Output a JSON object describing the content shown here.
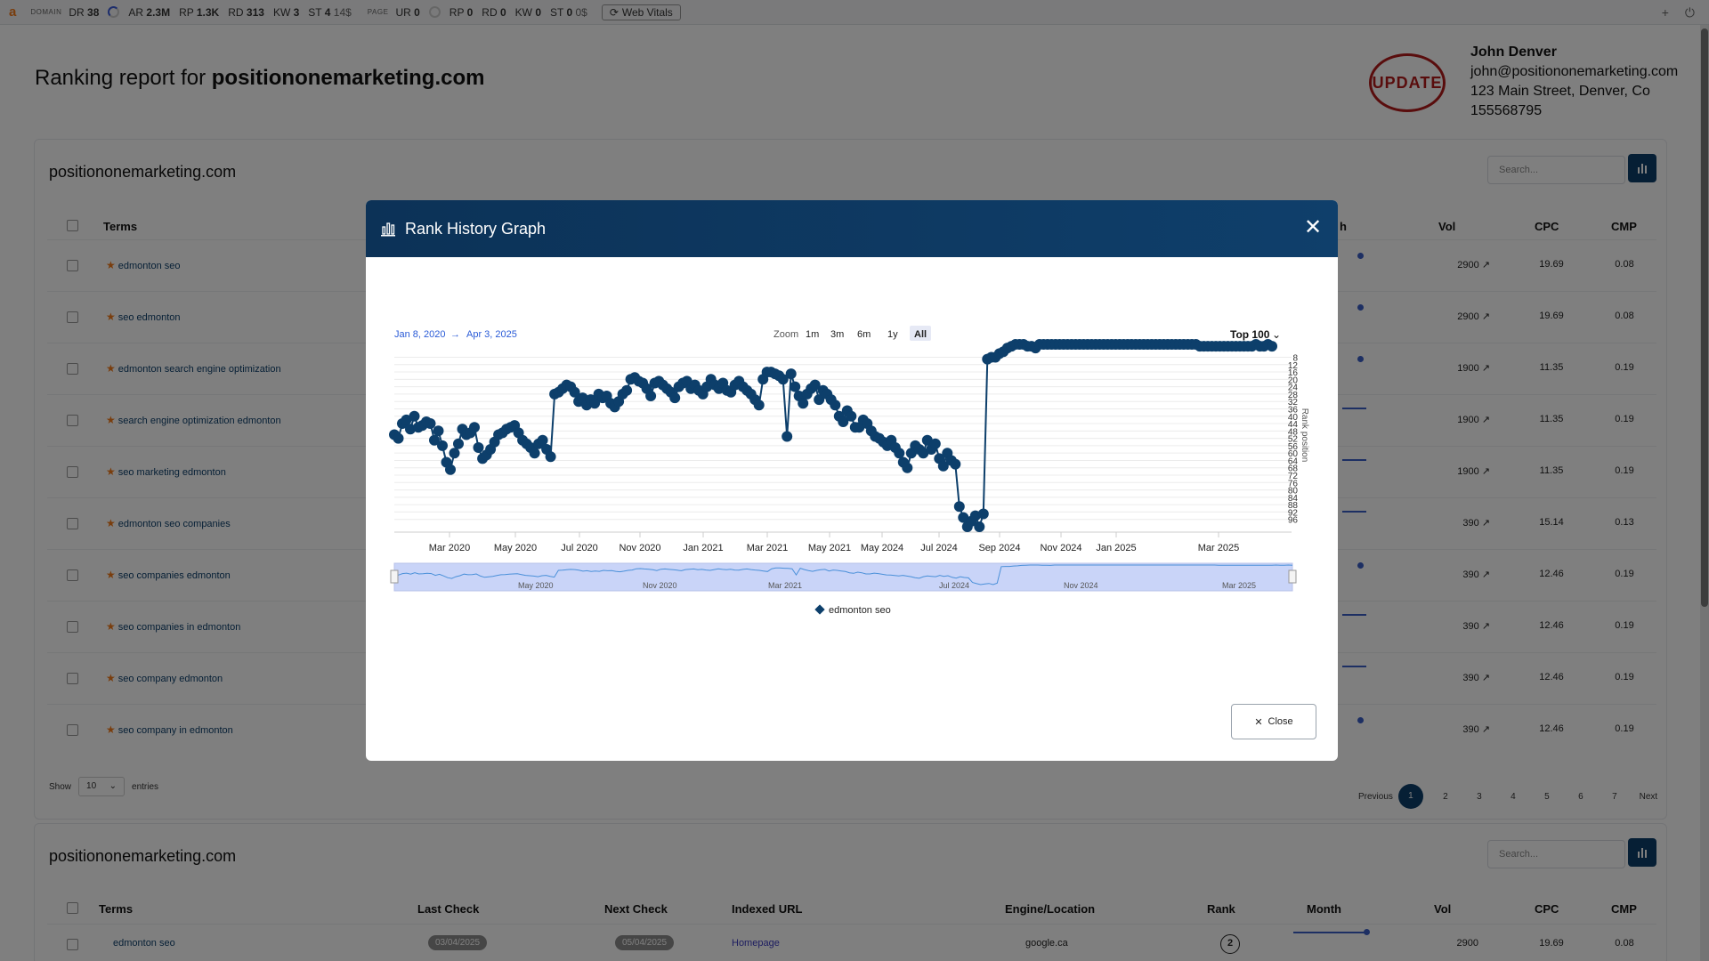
{
  "toolbar": {
    "logo": "a",
    "domain_label": "DOMAIN",
    "page_label": "PAGE",
    "domain_metrics": [
      {
        "k": "DR",
        "v": "38"
      },
      {
        "k": "AR",
        "v": "2.3M"
      },
      {
        "k": "RP",
        "v": "1.3K"
      },
      {
        "k": "RD",
        "v": "313"
      },
      {
        "k": "KW",
        "v": "3"
      },
      {
        "k": "ST",
        "v": "4",
        "extra": "14$"
      }
    ],
    "page_metrics": [
      {
        "k": "UR",
        "v": "0"
      },
      {
        "k": "RP",
        "v": "0"
      },
      {
        "k": "RD",
        "v": "0"
      },
      {
        "k": "KW",
        "v": "0"
      },
      {
        "k": "ST",
        "v": "0",
        "extra": "0$"
      }
    ],
    "web_vitals": "Web Vitals"
  },
  "report": {
    "title_prefix": "Ranking report for ",
    "title_domain": "positiononemarketing.com",
    "stamp_text": "UPDATE",
    "contact": {
      "name": "John Denver",
      "email": "john@positiononemarketing.com",
      "address": "123 Main Street, Denver, Co",
      "phone": "155568795"
    }
  },
  "card1": {
    "title": "positiononemarketing.com",
    "search_placeholder": "Search...",
    "headers": {
      "terms": "Terms",
      "month": "h",
      "vol": "Vol",
      "cpc": "CPC",
      "cmp": "CMP"
    },
    "rows": [
      {
        "term": "edmonton seo",
        "vol": "2900",
        "cpc": "19.69",
        "cmp": "0.08",
        "trend": "dot"
      },
      {
        "term": "seo edmonton",
        "vol": "2900",
        "cpc": "19.69",
        "cmp": "0.08",
        "trend": "dot"
      },
      {
        "term": "edmonton search engine optimization",
        "vol": "1900",
        "cpc": "11.35",
        "cmp": "0.19",
        "trend": "dot"
      },
      {
        "term": "search engine optimization edmonton",
        "vol": "1900",
        "cpc": "11.35",
        "cmp": "0.19",
        "trend": "line"
      },
      {
        "term": "seo marketing edmonton",
        "vol": "1900",
        "cpc": "11.35",
        "cmp": "0.19",
        "trend": "line"
      },
      {
        "term": "edmonton seo companies",
        "vol": "390",
        "cpc": "15.14",
        "cmp": "0.13",
        "trend": "line"
      },
      {
        "term": "seo companies edmonton",
        "vol": "390",
        "cpc": "12.46",
        "cmp": "0.19",
        "trend": "dot"
      },
      {
        "term": "seo companies in edmonton",
        "vol": "390",
        "cpc": "12.46",
        "cmp": "0.19",
        "trend": "line"
      },
      {
        "term": "seo company edmonton",
        "vol": "390",
        "cpc": "12.46",
        "cmp": "0.19",
        "trend": "line"
      },
      {
        "term": "seo company in edmonton",
        "vol": "390",
        "cpc": "12.46",
        "cmp": "0.19",
        "trend": "dot"
      }
    ],
    "show": "Show",
    "entries_value": "10",
    "entries": "entries",
    "pager": {
      "previous": "Previous",
      "pages": [
        "1",
        "2",
        "3",
        "4",
        "5",
        "6",
        "7"
      ],
      "next": "Next",
      "active": "1"
    }
  },
  "card2": {
    "title": "positiononemarketing.com",
    "search_placeholder": "Search...",
    "headers": {
      "terms": "Terms",
      "last_check": "Last Check",
      "next_check": "Next Check",
      "indexed_url": "Indexed URL",
      "engine": "Engine/Location",
      "rank": "Rank",
      "month": "Month",
      "vol": "Vol",
      "cpc": "CPC",
      "cmp": "CMP"
    },
    "row": {
      "term": "edmonton seo",
      "last_check": "03/04/2025",
      "next_check": "05/04/2025",
      "indexed_url": "Homepage",
      "engine": "google.ca",
      "rank": "2",
      "vol": "2900",
      "cpc": "19.69",
      "cmp": "0.08"
    }
  },
  "modal": {
    "title": "Rank History Graph",
    "close_label": "Close",
    "date_from": "Jan 8, 2020",
    "date_to": "Apr 3, 2025",
    "zoom_label": "Zoom",
    "zoom_options": [
      "1m",
      "3m",
      "6m",
      "1y",
      "All"
    ],
    "zoom_active": "All",
    "top_select": "Top 100",
    "legend": "edmonton seo",
    "colors": {
      "series": "#0d3f6b",
      "navigator_fill": "#c9d4f8",
      "navigator_line": "#4a90d9"
    }
  },
  "chart_data": {
    "type": "line",
    "ylabel": "Rank position",
    "y_reversed": true,
    "ylim": [
      1,
      100
    ],
    "y_ticks": [
      8,
      12,
      16,
      20,
      24,
      28,
      32,
      36,
      40,
      44,
      48,
      52,
      56,
      60,
      64,
      68,
      72,
      76,
      80,
      84,
      88,
      92,
      96
    ],
    "x_ticks": [
      "Mar 2020",
      "May 2020",
      "Jul 2020",
      "Nov 2020",
      "Jan 2021",
      "Mar 2021",
      "May 2021",
      "May 2024",
      "Jul 2024",
      "Sep 2024",
      "Nov 2024",
      "Jan 2025",
      "Mar 2025"
    ],
    "navigator_ticks": [
      "May 2020",
      "Nov 2020",
      "Mar 2021",
      "Jul 2024",
      "Nov 2024",
      "Mar 2025"
    ],
    "series": [
      {
        "name": "edmonton seo",
        "values": [
          50,
          52,
          44,
          42,
          47,
          40,
          46,
          45,
          43,
          44,
          53,
          48,
          56,
          65,
          69,
          60,
          55,
          47,
          50,
          49,
          46,
          57,
          63,
          61,
          58,
          54,
          50,
          49,
          47,
          46,
          45,
          49,
          53,
          55,
          57,
          60,
          55,
          53,
          58,
          62,
          28,
          27,
          25,
          23,
          24,
          27,
          32,
          30,
          34,
          31,
          33,
          28,
          30,
          29,
          33,
          35,
          32,
          28,
          26,
          20,
          19,
          21,
          22,
          25,
          29,
          22,
          21,
          23,
          25,
          27,
          30,
          24,
          22,
          21,
          25,
          23,
          26,
          28,
          24,
          20,
          23,
          25,
          22,
          26,
          27,
          23,
          21,
          24,
          26,
          28,
          31,
          34,
          20,
          16,
          16,
          17,
          18,
          20,
          51,
          17,
          24,
          29,
          33,
          28,
          25,
          23,
          31,
          26,
          28,
          31,
          34,
          40,
          43,
          37,
          40,
          46,
          46,
          42,
          44,
          48,
          51,
          52,
          54,
          56,
          53,
          57,
          60,
          65,
          68,
          60,
          56,
          58,
          60,
          53,
          58,
          55,
          63,
          67,
          60,
          64,
          66,
          89,
          95,
          100,
          97,
          94,
          100,
          93,
          9,
          8,
          8,
          6,
          5,
          3,
          2,
          1,
          1,
          1,
          2,
          2,
          3,
          1,
          1,
          1,
          1,
          1,
          1,
          1,
          1,
          1,
          1,
          1,
          1,
          1,
          1,
          1,
          1,
          1,
          1,
          1,
          1,
          1,
          1,
          1,
          1,
          1,
          1,
          1,
          1,
          1,
          1,
          1,
          1,
          1,
          1,
          1,
          1,
          1,
          1,
          1,
          1,
          2,
          2,
          2,
          2,
          2,
          2,
          2,
          2,
          2,
          2,
          2,
          2,
          2,
          2,
          1,
          2,
          2,
          1,
          2
        ]
      }
    ]
  }
}
